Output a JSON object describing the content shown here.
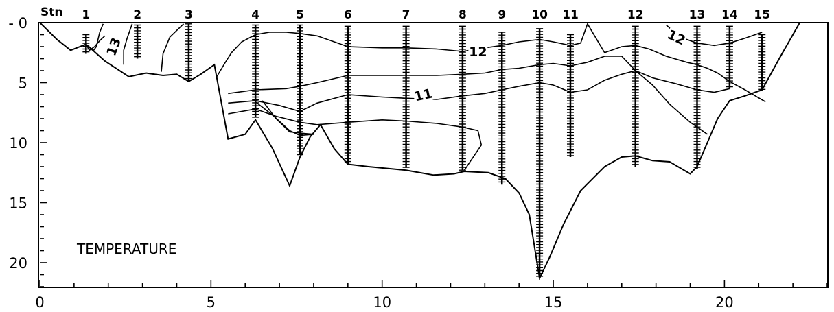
{
  "chart_data": {
    "type": "line",
    "subtype": "oceanographic section (temperature contours along a transect)",
    "title": "TEMPERATURE",
    "xlabel": "",
    "ylabel": "",
    "xlim": [
      0,
      23
    ],
    "ylim": [
      0,
      22
    ],
    "y_inverted": true,
    "x_ticks": [
      0,
      5,
      10,
      15,
      20
    ],
    "x_tick_labels": [
      "0",
      "5",
      "10",
      "15",
      "20"
    ],
    "y_ticks": [
      0,
      5,
      10,
      15,
      20
    ],
    "y_tick_labels": [
      "- 0",
      "5",
      "10",
      "15",
      "20"
    ],
    "grid": false,
    "stations_label": "Stn",
    "stations": [
      {
        "label": "1",
        "x": 1.35,
        "top": 1.0,
        "bottom": 2.6
      },
      {
        "label": "2",
        "x": 2.85,
        "top": 0.2,
        "bottom": 3.0
      },
      {
        "label": "3",
        "x": 4.35,
        "top": 0.1,
        "bottom": 4.9
      },
      {
        "label": "4",
        "x": 6.3,
        "top": 0.2,
        "bottom": 7.9
      },
      {
        "label": "5",
        "x": 7.6,
        "top": 0.2,
        "bottom": 11.0
      },
      {
        "label": "6",
        "x": 9.0,
        "top": 0.3,
        "bottom": 11.8
      },
      {
        "label": "7",
        "x": 10.7,
        "top": 0.3,
        "bottom": 12.1
      },
      {
        "label": "8",
        "x": 12.35,
        "top": 0.3,
        "bottom": 12.3
      },
      {
        "label": "9",
        "x": 13.5,
        "top": 0.8,
        "bottom": 13.5
      },
      {
        "label": "10",
        "x": 14.6,
        "top": 0.5,
        "bottom": 21.3
      },
      {
        "label": "11",
        "x": 15.5,
        "top": 1.0,
        "bottom": 11.2
      },
      {
        "label": "12",
        "x": 17.4,
        "top": 0.3,
        "bottom": 12.0
      },
      {
        "label": "13",
        "x": 19.2,
        "top": 0.3,
        "bottom": 12.2
      },
      {
        "label": "14",
        "x": 20.15,
        "top": 0.3,
        "bottom": 5.5
      },
      {
        "label": "15",
        "x": 21.1,
        "top": 1.0,
        "bottom": 5.6
      }
    ],
    "bottom_profile": {
      "x": [
        0,
        0.5,
        0.9,
        1.35,
        1.9,
        2.6,
        3.1,
        3.6,
        4.0,
        4.35,
        4.7,
        5.1,
        5.5,
        6.0,
        6.3,
        6.8,
        7.3,
        7.6,
        7.9,
        8.2,
        8.6,
        9.0,
        9.6,
        10.7,
        11.5,
        12.1,
        12.4,
        13.1,
        13.6,
        14.0,
        14.3,
        14.6,
        14.9,
        15.3,
        15.8,
        16.5,
        17.0,
        17.4,
        17.9,
        18.4,
        19.0,
        19.2,
        19.5,
        19.8,
        20.15,
        20.6,
        21.1,
        21.6,
        22.2
      ],
      "y": [
        0,
        1.4,
        2.3,
        1.8,
        3.2,
        4.5,
        4.2,
        4.4,
        4.3,
        4.9,
        4.3,
        3.5,
        9.7,
        9.3,
        8.1,
        10.5,
        13.6,
        11.2,
        9.5,
        8.5,
        10.5,
        11.8,
        12.0,
        12.3,
        12.7,
        12.6,
        12.4,
        12.5,
        13.0,
        14.2,
        16.0,
        21.3,
        19.5,
        16.8,
        14.0,
        12.0,
        11.2,
        11.1,
        11.5,
        11.6,
        12.6,
        12.0,
        10.0,
        8.0,
        6.5,
        6.1,
        5.6,
        3.0,
        0
      ]
    },
    "contour_label_values": [
      "13",
      "12",
      "12",
      "11"
    ],
    "contours": [
      {
        "id": "c13-a",
        "label": "13",
        "x": [
          1.9,
          1.75,
          1.6,
          1.45,
          1.35
        ],
        "y": [
          1.1,
          1.5,
          2.0,
          2.3,
          1.8
        ]
      },
      {
        "id": "c13-b",
        "x": [
          2.7,
          2.55,
          2.45,
          2.45
        ],
        "y": [
          0.1,
          1.3,
          2.3,
          3.5
        ]
      },
      {
        "id": "c13-c",
        "x": [
          4.2,
          3.8,
          3.6,
          3.55
        ],
        "y": [
          0.1,
          1.2,
          2.6,
          4.1
        ]
      },
      {
        "id": "c13-d",
        "x": [
          1.85,
          1.75,
          1.7,
          1.65,
          1.55
        ],
        "y": [
          0.1,
          0.8,
          1.4,
          2.0,
          2.4
        ]
      },
      {
        "id": "c12-main",
        "label": "12",
        "x": [
          5.15,
          5.4,
          5.6,
          5.9,
          6.3,
          6.7,
          7.2,
          7.6,
          8.1,
          8.6,
          9.0,
          10.0,
          10.7,
          11.6,
          12.35,
          13.0,
          13.5,
          14.0,
          14.6,
          15.0,
          15.5,
          15.8,
          16.0,
          16.5,
          17.0,
          17.4,
          17.8,
          18.3,
          18.9,
          19.2,
          19.5,
          19.8,
          20.15,
          20.6,
          20.9,
          21.2
        ],
        "y": [
          4.6,
          3.4,
          2.5,
          1.6,
          1.0,
          0.8,
          0.8,
          0.9,
          1.1,
          1.6,
          2.0,
          2.1,
          2.1,
          2.2,
          2.4,
          2.1,
          1.9,
          1.6,
          1.4,
          1.6,
          1.9,
          1.7,
          0.1,
          2.5,
          2.0,
          1.9,
          2.2,
          2.8,
          3.3,
          3.5,
          3.8,
          4.2,
          4.9,
          5.6,
          6.1,
          6.6
        ]
      },
      {
        "id": "c12-right",
        "label": "12",
        "x": [
          18.3,
          18.7,
          19.2,
          19.7,
          20.15,
          20.6,
          21.1
        ],
        "y": [
          0.2,
          1.2,
          1.7,
          1.9,
          1.7,
          1.3,
          0.8
        ]
      },
      {
        "id": "c11-main",
        "label": "11",
        "x": [
          5.5,
          6.3,
          7.2,
          7.6,
          8.1,
          9.0,
          10.0,
          10.7,
          11.6,
          12.35,
          13.0,
          13.5,
          14.0,
          14.6,
          15.0,
          15.5,
          16.0,
          16.5,
          17.0,
          17.4,
          17.9,
          18.6,
          19.2,
          19.7,
          20.15
        ],
        "y": [
          5.9,
          5.6,
          5.5,
          5.3,
          5.0,
          4.4,
          4.4,
          4.4,
          4.4,
          4.3,
          4.2,
          3.9,
          3.8,
          3.5,
          3.4,
          3.6,
          3.3,
          2.8,
          2.8,
          4.0,
          4.6,
          5.1,
          5.6,
          5.8,
          5.5
        ]
      },
      {
        "id": "c11-lower",
        "x": [
          5.5,
          6.3,
          7.0,
          7.6,
          8.1,
          9.0,
          10.0,
          10.7,
          11.6,
          12.35,
          13.0,
          13.5,
          14.0,
          14.6,
          15.0,
          15.5,
          16.0,
          16.5,
          17.0,
          17.4,
          17.9,
          18.4,
          19.0,
          19.2,
          19.5
        ],
        "y": [
          6.7,
          6.5,
          6.9,
          7.4,
          6.7,
          6.0,
          6.2,
          6.3,
          6.4,
          6.1,
          5.9,
          5.6,
          5.3,
          5.0,
          5.2,
          5.8,
          5.6,
          4.8,
          4.3,
          4.0,
          5.2,
          6.8,
          8.3,
          8.7,
          9.3
        ]
      },
      {
        "id": "c10",
        "x": [
          5.5,
          6.3,
          6.9,
          7.6,
          8.1,
          9.0,
          10.0,
          10.7,
          11.6,
          12.35,
          12.8,
          12.9,
          12.4
        ],
        "y": [
          7.6,
          7.2,
          7.8,
          8.3,
          8.5,
          8.3,
          8.1,
          8.2,
          8.4,
          8.7,
          9.0,
          10.2,
          12.3
        ]
      },
      {
        "id": "c10-inner",
        "x": [
          6.3,
          6.8,
          7.3,
          7.6,
          8.0
        ],
        "y": [
          6.6,
          7.7,
          9.0,
          9.4,
          9.3
        ]
      },
      {
        "id": "c10-deep",
        "x": [
          6.5,
          6.9,
          7.3,
          7.6,
          8.0
        ],
        "y": [
          6.5,
          8.0,
          9.1,
          9.2,
          9.3
        ]
      }
    ],
    "contour_labels": [
      {
        "text": "13",
        "x": 2.15,
        "y": 2.0,
        "rotate": -70
      },
      {
        "text": "12",
        "x": 12.8,
        "y": 2.4,
        "rotate": 0
      },
      {
        "text": "12",
        "x": 18.6,
        "y": 1.2,
        "rotate": 25
      },
      {
        "text": "11",
        "x": 11.2,
        "y": 6.0,
        "rotate": -12
      }
    ]
  }
}
